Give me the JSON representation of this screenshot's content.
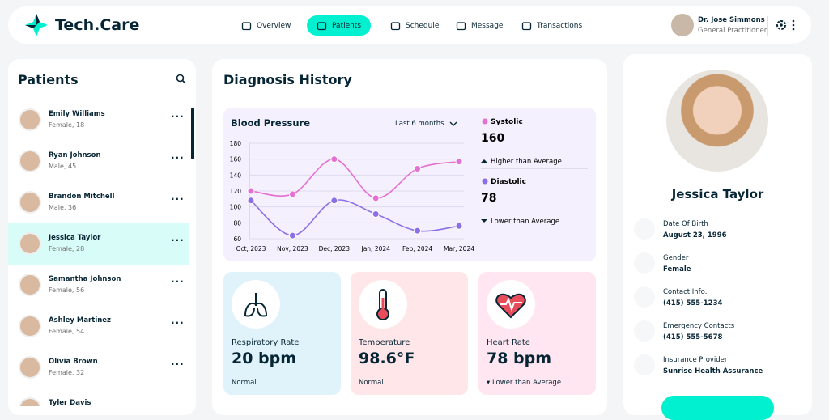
{
  "header": {
    "logo": "Tech.Care",
    "nav": [
      "Overview",
      "Patients",
      "Schedule",
      "Message",
      "Transactions"
    ],
    "user": {
      "name": "Dr. Jose Simmons",
      "role": "General Practitioner"
    }
  },
  "patients": {
    "title": "Patients",
    "list": [
      {
        "name": "Emily Williams",
        "info": "Female, 18"
      },
      {
        "name": "Ryan Johnson",
        "info": "Male, 45"
      },
      {
        "name": "Brandon Mitchell",
        "info": "Male, 36"
      },
      {
        "name": "Jessica Taylor",
        "info": "Female, 28"
      },
      {
        "name": "Samantha Johnson",
        "info": "Female, 56"
      },
      {
        "name": "Ashley Martinez",
        "info": "Female, 54"
      },
      {
        "name": "Olivia Brown",
        "info": "Female, 32"
      },
      {
        "name": "Tyler Davis"
      }
    ]
  },
  "diagnosis": {
    "title": "Diagnosis History",
    "chart": {
      "type": "line",
      "title": "Blood Pressure",
      "filter": "Last 6 months",
      "categories": [
        "Oct, 2023",
        "Nov, 2023",
        "Dec, 2023",
        "Jan, 2024",
        "Feb, 2024",
        "Mar, 2024"
      ],
      "series": [
        {
          "name": "Systolic",
          "color": "#e66fd2",
          "values": [
            120,
            116,
            160,
            111,
            148,
            157
          ]
        },
        {
          "name": "Diastolic",
          "color": "#8c6fe6",
          "values": [
            108,
            64,
            108,
            91,
            70,
            76
          ]
        }
      ],
      "ylim": [
        60,
        180
      ],
      "yticks": [
        60,
        80,
        100,
        120,
        140,
        160,
        180
      ]
    },
    "readings": [
      {
        "value": 160,
        "note": "Higher than Average"
      },
      {
        "value": 78,
        "note": "Lower than Average"
      }
    ],
    "cards": [
      {
        "label": "Respiratory Rate",
        "value": "20 bpm",
        "note": "Normal"
      },
      {
        "label": "Temperature",
        "value": "98.6°F",
        "note": "Normal"
      },
      {
        "label": "Heart Rate",
        "value": "78 bpm",
        "note": "Lower than Average"
      }
    ]
  },
  "profile": {
    "name": "Jessica Taylor",
    "fields": [
      {
        "label": "Date Of Birth",
        "value": "August 23, 1996"
      },
      {
        "label": "Gender",
        "value": "Female"
      },
      {
        "label": "Contact Info.",
        "value": "(415) 555-1234"
      },
      {
        "label": "Emergency Contacts",
        "value": "(415) 555-5678"
      },
      {
        "label": "Insurance Provider",
        "value": "Sunrise Health Assurance"
      }
    ]
  }
}
